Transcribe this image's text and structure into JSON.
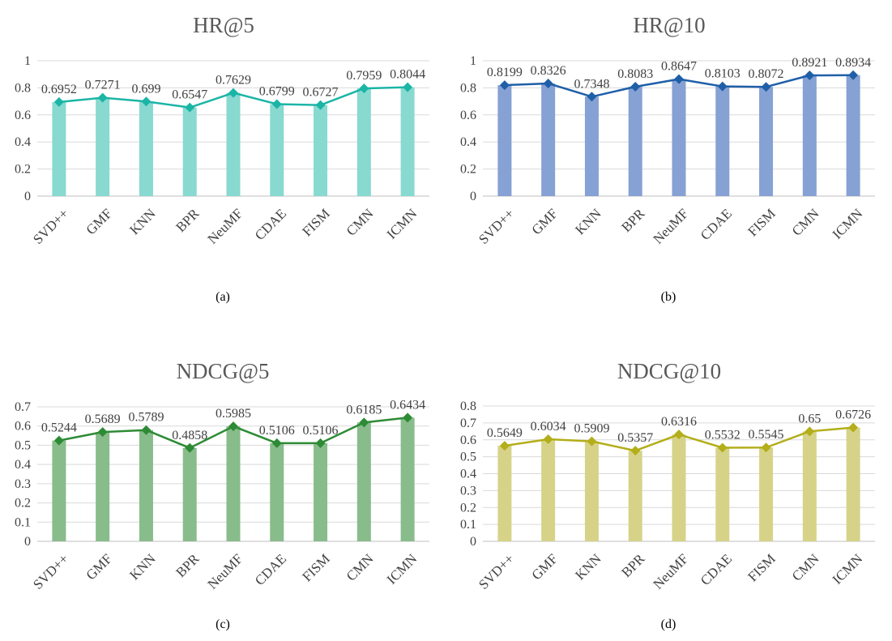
{
  "chart_data": [
    {
      "type": "bar",
      "title": "HR@5",
      "caption": "(a)",
      "categories": [
        "SVD++",
        "GMF",
        "KNN",
        "BPR",
        "NeuMF",
        "CDAE",
        "FISM",
        "CMN",
        "ICMN"
      ],
      "values": [
        0.6952,
        0.7271,
        0.699,
        0.6547,
        0.7629,
        0.6799,
        0.6727,
        0.7959,
        0.8044
      ],
      "data_labels": [
        "0.6952",
        "0.7271",
        "0.699",
        "0.6547",
        "0.7629",
        "0.6799",
        "0.6727",
        "0.7959",
        "0.8044"
      ],
      "overlay": "line",
      "marker": "diamond",
      "ylim": [
        0,
        1
      ],
      "yticks": [
        "0",
        "0.2",
        "0.4",
        "0.6",
        "0.8",
        "1"
      ],
      "bar_color": "#88D9D0",
      "line_color": "#1BB5A6",
      "grid": true
    },
    {
      "type": "bar",
      "title": "HR@10",
      "caption": "(b)",
      "categories": [
        "SVD++",
        "GMF",
        "KNN",
        "BPR",
        "NeuMF",
        "CDAE",
        "FISM",
        "CMN",
        "ICMN"
      ],
      "values": [
        0.8199,
        0.8326,
        0.7348,
        0.8083,
        0.8647,
        0.8103,
        0.8072,
        0.8921,
        0.8934
      ],
      "data_labels": [
        "0.8199",
        "0.8326",
        "0.7348",
        "0.8083",
        "0.8647",
        "0.8103",
        "0.8072",
        "0.8921",
        "0.8934"
      ],
      "overlay": "line",
      "marker": "diamond",
      "ylim": [
        0,
        1
      ],
      "yticks": [
        "0",
        "0.2",
        "0.4",
        "0.6",
        "0.8",
        "1"
      ],
      "bar_color": "#86A1D3",
      "line_color": "#1F5FA8",
      "grid": true
    },
    {
      "type": "bar",
      "title": "NDCG@5",
      "caption": "(c)",
      "categories": [
        "SVD++",
        "GMF",
        "KNN",
        "BPR",
        "NeuMF",
        "CDAE",
        "FISM",
        "CMN",
        "ICMN"
      ],
      "values": [
        0.5244,
        0.5689,
        0.5789,
        0.4858,
        0.5985,
        0.5106,
        0.5106,
        0.6185,
        0.6434
      ],
      "data_labels": [
        "0.5244",
        "0.5689",
        "0.5789",
        "0.4858",
        "0.5985",
        "0.5106",
        "0.5106",
        "0.6185",
        "0.6434"
      ],
      "overlay": "line",
      "marker": "diamond",
      "ylim": [
        0,
        0.7
      ],
      "yticks": [
        "0",
        "0.1",
        "0.2",
        "0.3",
        "0.4",
        "0.5",
        "0.6",
        "0.7"
      ],
      "bar_color": "#88BC8B",
      "line_color": "#2E8B35",
      "grid": true
    },
    {
      "type": "bar",
      "title": "NDCG@10",
      "caption": "(d)",
      "categories": [
        "SVD++",
        "GMF",
        "KNN",
        "BPR",
        "NeuMF",
        "CDAE",
        "FISM",
        "CMN",
        "ICMN"
      ],
      "values": [
        0.5649,
        0.6034,
        0.5909,
        0.5357,
        0.6316,
        0.5532,
        0.5545,
        0.65,
        0.6726
      ],
      "data_labels": [
        "0.5649",
        "0.6034",
        "0.5909",
        "0.5357",
        "0.6316",
        "0.5532",
        "0.5545",
        "0.65",
        "0.6726"
      ],
      "overlay": "line",
      "marker": "diamond",
      "ylim": [
        0,
        0.8
      ],
      "yticks": [
        "0",
        "0.1",
        "0.2",
        "0.3",
        "0.4",
        "0.5",
        "0.6",
        "0.7",
        "0.8"
      ],
      "bar_color": "#D6D389",
      "line_color": "#B3AE1A",
      "grid": true
    }
  ]
}
